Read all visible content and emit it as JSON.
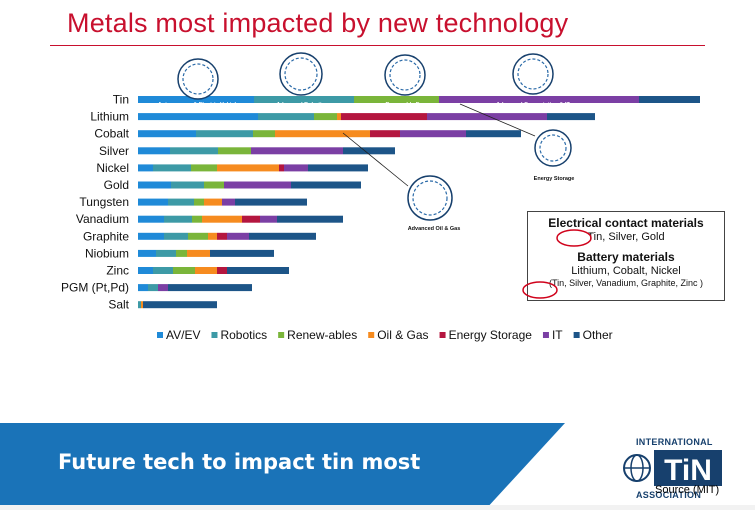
{
  "page": {
    "title": "Metals most impacted by new technology"
  },
  "chart_data": {
    "type": "bar",
    "orientation": "horizontal",
    "stacked": true,
    "title": "Metals most impacted by new technology",
    "categories": [
      "Tin",
      "Lithium",
      "Cobalt",
      "Silver",
      "Nickel",
      "Gold",
      "Tungsten",
      "Vanadium",
      "Graphite",
      "Niobium",
      "Zinc",
      "PGM (Pt,Pd)",
      "Salt"
    ],
    "series": [
      {
        "name": "AV/EV",
        "color": "#1f8ad8",
        "values": [
          116,
          120,
          58,
          32,
          15,
          33,
          30,
          26,
          26,
          18,
          15,
          10,
          0
        ]
      },
      {
        "name": "Robotics",
        "color": "#3d9aa6",
        "values": [
          100,
          56,
          57,
          48,
          38,
          33,
          26,
          28,
          24,
          20,
          20,
          10,
          3
        ]
      },
      {
        "name": "Renew-ables",
        "color": "#7ab53a",
        "values": [
          85,
          23,
          22,
          33,
          26,
          20,
          10,
          10,
          20,
          11,
          22,
          0,
          0
        ]
      },
      {
        "name": "Oil & Gas",
        "color": "#f68b1f",
        "values": [
          0,
          4,
          95,
          0,
          62,
          0,
          18,
          40,
          9,
          23,
          22,
          0,
          2
        ]
      },
      {
        "name": "Energy Storage",
        "color": "#b4163f",
        "values": [
          0,
          86,
          30,
          0,
          5,
          0,
          0,
          18,
          10,
          0,
          10,
          0,
          0
        ]
      },
      {
        "name": "IT",
        "color": "#7b3fa4",
        "values": [
          200,
          120,
          66,
          92,
          24,
          67,
          13,
          17,
          22,
          0,
          0,
          10,
          0
        ]
      },
      {
        "name": "Other",
        "color": "#1d5588",
        "values": [
          61,
          48,
          55,
          52,
          60,
          70,
          72,
          66,
          67,
          64,
          62,
          84,
          74
        ]
      }
    ],
    "icons": [
      "Autonomous & Electric Vehicles",
      "Advanced Robotics",
      "Renewable Energy",
      "Advanced Computation & IT",
      "Energy Storage",
      "Advanced Oil & Gas"
    ],
    "legend_position": "bottom",
    "grid": false
  },
  "callout": {
    "heading1": "Electrical contact materials",
    "line1": "Tin, Silver, Gold",
    "heading2": "Battery materials",
    "line2": "Lithium, Cobalt, Nickel",
    "line3": "(Tin, Silver, Vanadium, Graphite, Zinc )"
  },
  "banner": {
    "text": "Future tech to impact tin most",
    "logo_top": "INTERNATIONAL",
    "logo_bottom": "ASSOCIATION",
    "source": "Source (MIT)",
    "color": "#1a73b8"
  }
}
